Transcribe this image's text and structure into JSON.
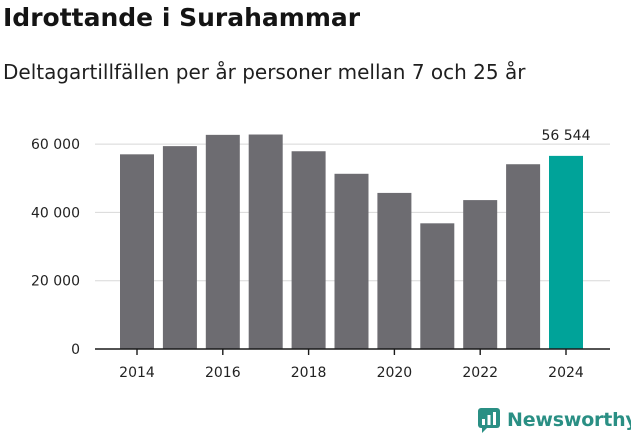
{
  "header": {
    "title": "Idrottande i Surahammar",
    "subtitle": "Deltagartillfällen per år personer mellan 7 och 25 år"
  },
  "brand": {
    "name": "Newsworthy",
    "color": "#2a8f84"
  },
  "colors": {
    "bar": "#6d6c71",
    "highlight": "#00a399",
    "grid": "#d8d8d8",
    "axis": "#1a1a1a"
  },
  "chart_data": {
    "type": "bar",
    "categories": [
      2014,
      2015,
      2016,
      2017,
      2018,
      2019,
      2020,
      2021,
      2022,
      2023,
      2024
    ],
    "values": [
      57000,
      59400,
      62700,
      62800,
      57900,
      51300,
      45700,
      36800,
      43600,
      54100,
      56544
    ],
    "highlight_category": 2024,
    "value_label": "56 544",
    "title": "Idrottande i Surahammar",
    "subtitle": "Deltagartillfällen per år personer mellan 7 och 25 år",
    "xlabel": "",
    "ylabel": "",
    "ylim": [
      0,
      65000
    ],
    "yticks": [
      0,
      20000,
      40000,
      60000
    ],
    "ytick_labels": [
      "0",
      "20 000",
      "40 000",
      "60 000"
    ],
    "xticks": [
      2014,
      2016,
      2018,
      2020,
      2022,
      2024
    ],
    "xtick_labels": [
      "2014",
      "2016",
      "2018",
      "2020",
      "2022",
      "2024"
    ],
    "grid": true,
    "legend": "none"
  }
}
